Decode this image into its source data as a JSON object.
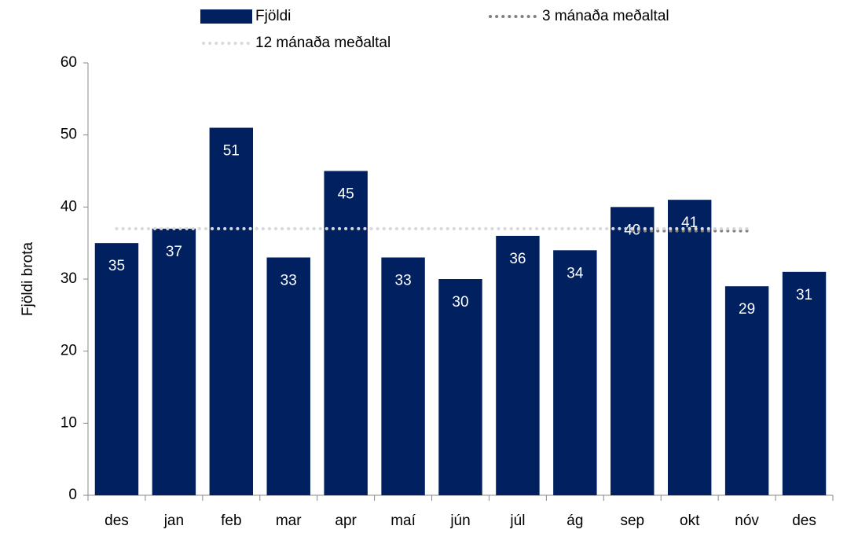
{
  "chart_data": {
    "type": "bar",
    "y_label": "Fjöldi brota",
    "categories": [
      "des",
      "jan",
      "feb",
      "mar",
      "apr",
      "maí",
      "jún",
      "júl",
      "ág",
      "sep",
      "okt",
      "nóv",
      "des"
    ],
    "series": [
      {
        "name": "Fjöldi",
        "type": "bar",
        "color": "#002060",
        "values": [
          35,
          37,
          51,
          33,
          45,
          33,
          30,
          36,
          34,
          40,
          41,
          29,
          31
        ]
      },
      {
        "name": "3 mánaða meðaltal",
        "type": "line",
        "color": "#808080",
        "values": [
          null,
          null,
          null,
          null,
          null,
          null,
          null,
          null,
          null,
          36.7,
          36.7,
          36.7,
          null
        ]
      },
      {
        "name": "12 mánaða meðaltal",
        "type": "line",
        "color": "#d9d9d9",
        "values": [
          37,
          37,
          37,
          37,
          37,
          37,
          37,
          37,
          37,
          37,
          37,
          37,
          null
        ]
      }
    ],
    "ylim": [
      0,
      60
    ],
    "yticks": [
      0,
      10,
      20,
      30,
      40,
      50,
      60
    ],
    "grid": false
  }
}
